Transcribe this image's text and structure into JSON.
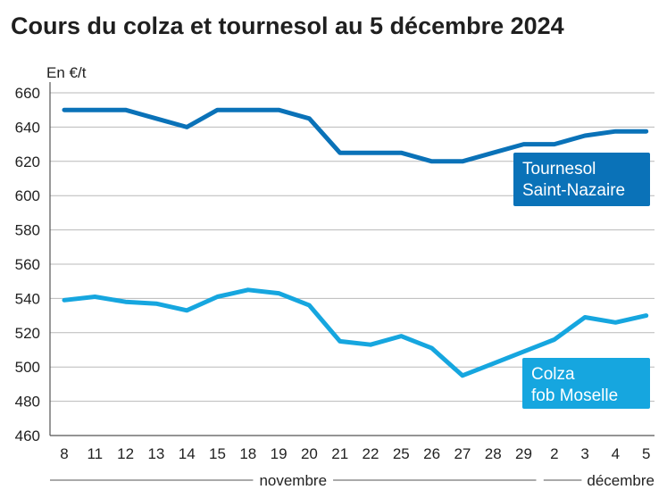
{
  "chart_data": {
    "type": "line",
    "title": "Cours du colza et tournesol au 5 décembre 2024",
    "ylabel": "En €/t",
    "xlabel": "",
    "ylim": [
      460,
      660
    ],
    "yticks": [
      460,
      480,
      500,
      520,
      540,
      560,
      580,
      600,
      620,
      640,
      660
    ],
    "grid": true,
    "categories": [
      "8",
      "11",
      "12",
      "13",
      "14",
      "15",
      "18",
      "19",
      "20",
      "21",
      "22",
      "25",
      "26",
      "27",
      "28",
      "29",
      "2",
      "3",
      "4",
      "5"
    ],
    "months": [
      {
        "label": "novembre",
        "from": 0,
        "to": 15
      },
      {
        "label": "décembre",
        "from": 16,
        "to": 19
      }
    ],
    "series": [
      {
        "name": "Tournesol Saint-Nazaire",
        "label_lines": [
          "Tournesol",
          "Saint-Nazaire"
        ],
        "color": "#0a72b8",
        "values": [
          650,
          650,
          650,
          645,
          640,
          650,
          650,
          650,
          645,
          625,
          625,
          625,
          620,
          620,
          625,
          630,
          630,
          635,
          637.5,
          637.5
        ]
      },
      {
        "name": "Colza fob Moselle",
        "label_lines": [
          "Colza",
          "fob Moselle"
        ],
        "color": "#16a6df",
        "values": [
          539,
          541,
          538,
          537,
          533,
          541,
          545,
          543,
          536,
          515,
          513,
          518,
          511,
          495,
          502,
          509,
          516,
          529,
          526,
          530
        ]
      }
    ]
  }
}
